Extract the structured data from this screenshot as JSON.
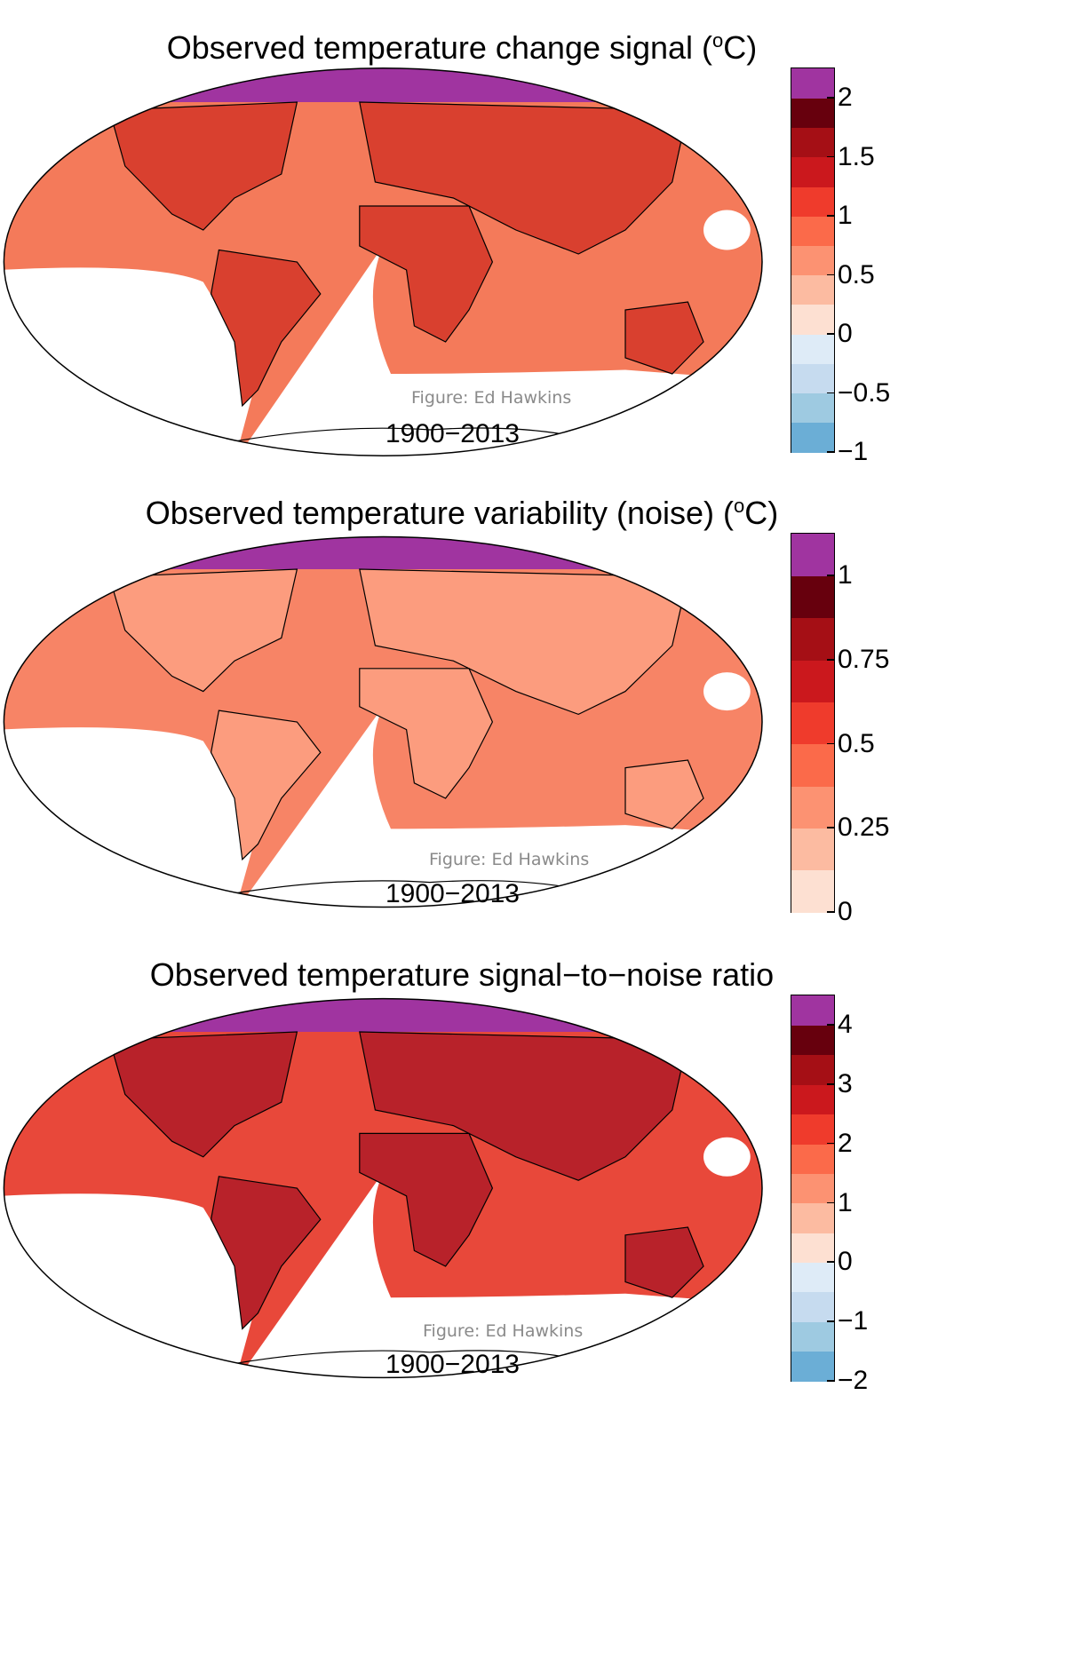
{
  "credit_text": "Figure: Ed Hawkins",
  "period_text": "1900−2013",
  "panels": [
    {
      "title_main": "Observed temperature change signal (",
      "title_sup": "o",
      "title_end": "C)",
      "colors": [
        "#6baed6",
        "#9ecae1",
        "#c6dbef",
        "#deebf7",
        "#fde0d2",
        "#fcbba1",
        "#fc9272",
        "#fb6a4a",
        "#ef3b2c",
        "#cb181d",
        "#a50f15",
        "#67000d",
        "#a034a0"
      ],
      "ticks": [
        "−1",
        "−0.5",
        "0",
        "0.5",
        "1",
        "1.5",
        "2"
      ],
      "sea_tone": "#f47a5a",
      "land_tone": "#d9402f"
    },
    {
      "title_main": "Observed temperature variability (noise) (",
      "title_sup": "o",
      "title_end": "C)",
      "colors": [
        "#fde0d2",
        "#fcbba1",
        "#fc9272",
        "#fb6a4a",
        "#ef3b2c",
        "#cb181d",
        "#a50f15",
        "#67000d",
        "#a034a0"
      ],
      "ticks": [
        "0",
        "0.25",
        "0.5",
        "0.75",
        "1"
      ],
      "sea_tone": "#f78466",
      "land_tone": "#fc9c7e"
    },
    {
      "title_main": "Observed temperature signal−to−noise ratio",
      "title_sup": "",
      "title_end": "",
      "colors": [
        "#6baed6",
        "#9ecae1",
        "#c6dbef",
        "#deebf7",
        "#fde0d2",
        "#fcbba1",
        "#fc9272",
        "#fb6a4a",
        "#ef3b2c",
        "#cb181d",
        "#a50f15",
        "#67000d",
        "#a034a0"
      ],
      "ticks": [
        "−2",
        "−1",
        "0",
        "1",
        "2",
        "3",
        "4"
      ],
      "sea_tone": "#e8483a",
      "land_tone": "#b8222a"
    }
  ]
}
